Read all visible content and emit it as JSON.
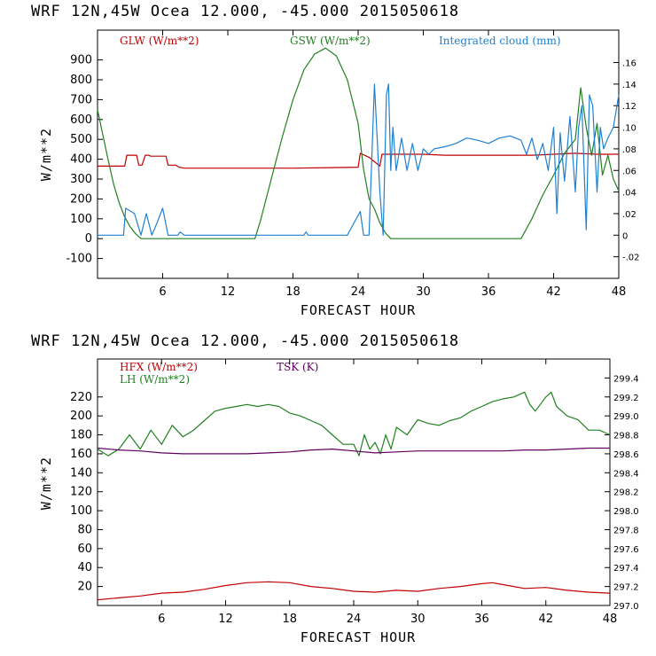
{
  "panels": [
    {
      "header": "WRF  12N,45W Ocea  12.000, -45.000  2015050618",
      "chart_data": {
        "type": "line",
        "xlabel": "FORECAST HOUR",
        "ylabel": "W/m**2",
        "xlim": [
          0,
          48
        ],
        "ylim": [
          -200,
          1050
        ],
        "xticks": [
          6,
          12,
          18,
          24,
          30,
          36,
          42,
          48
        ],
        "yticks": [
          -100,
          0,
          100,
          200,
          300,
          400,
          500,
          600,
          700,
          800,
          900
        ],
        "y2lim": [
          -0.04,
          0.19
        ],
        "y2ticks": [
          -0.02,
          0,
          0.02,
          0.04,
          0.06,
          0.08,
          0.1,
          0.12,
          0.14,
          0.16
        ],
        "y2ticklabels": [
          "-.02",
          "0",
          ".02",
          ".04",
          ".06",
          ".08",
          ".10",
          ".12",
          ".14",
          ".16"
        ],
        "series": [
          {
            "name": "GLW (W/m**2)",
            "color": "#c00000",
            "axis": "left",
            "x": [
              0,
              2.5,
              2.7,
              3.6,
              3.8,
              4.1,
              4.4,
              4.7,
              4.9,
              6.3,
              6.5,
              7.2,
              7.5,
              8,
              10,
              14,
              18,
              22,
              24,
              24.2,
              25,
              26,
              26.2,
              28,
              30,
              32,
              34,
              36,
              38,
              40,
              42,
              44,
              46,
              48
            ],
            "y": [
              365,
              365,
              420,
              420,
              370,
              370,
              420,
              420,
              415,
              415,
              370,
              370,
              360,
              355,
              355,
              355,
              355,
              358,
              360,
              430,
              410,
              365,
              425,
              425,
              425,
              420,
              420,
              420,
              420,
              420,
              425,
              430,
              425,
              425
            ]
          },
          {
            "name": "GSW (W/m**2)",
            "color": "#208020",
            "axis": "left",
            "x": [
              0,
              0.5,
              1,
              1.5,
              2,
              2.5,
              3,
              3.5,
              4,
              14.5,
              15,
              16,
              17,
              18,
              19,
              20,
              21,
              22,
              23,
              24,
              24.5,
              25,
              25.5,
              26,
              26.5,
              27,
              39,
              40,
              41,
              42,
              43,
              44,
              44.5,
              45,
              45.5,
              46,
              46.5,
              47,
              47.5,
              48
            ],
            "y": [
              650,
              520,
              390,
              270,
              180,
              110,
              60,
              25,
              0,
              0,
              90,
              300,
              510,
              700,
              850,
              930,
              960,
              920,
              800,
              580,
              350,
              200,
              150,
              80,
              30,
              0,
              0,
              100,
              220,
              320,
              430,
              500,
              760,
              560,
              420,
              580,
              320,
              420,
              300,
              240
            ]
          },
          {
            "name": "Integrated cloud (mm)",
            "color": "#2080d0",
            "axis": "right",
            "x": [
              0,
              2.4,
              2.6,
              3.4,
              4,
              4.5,
              5,
              5.5,
              6,
              6.5,
              7,
              7.4,
              7.6,
              8,
              15,
              19,
              19.2,
              19.4,
              23,
              24.2,
              24.5,
              24.8,
              25,
              25.5,
              26,
              26.3,
              26.6,
              26.8,
              27,
              27.2,
              27.5,
              28,
              28.5,
              29,
              29.5,
              30,
              30.5,
              31,
              32,
              33,
              34,
              35,
              36,
              37,
              38,
              39,
              39.5,
              40,
              40.5,
              41,
              41.5,
              42,
              42.3,
              42.6,
              43,
              43.5,
              44,
              44.3,
              44.6,
              45,
              45.3,
              45.6,
              46,
              46.3,
              46.6,
              47,
              47.5,
              48
            ],
            "y": [
              0,
              0,
              0.025,
              0.02,
              0,
              0.02,
              0,
              0.012,
              0.025,
              0,
              0,
              0,
              0.003,
              0,
              0,
              0,
              0.003,
              0,
              0,
              0.022,
              0,
              0,
              0,
              0.14,
              0.04,
              0,
              0.13,
              0.14,
              0.06,
              0.1,
              0.06,
              0.09,
              0.06,
              0.085,
              0.06,
              0.08,
              0.075,
              0.08,
              0.082,
              0.085,
              0.09,
              0.088,
              0.085,
              0.09,
              0.092,
              0.088,
              0.075,
              0.09,
              0.07,
              0.085,
              0.06,
              0.1,
              0.02,
              0.095,
              0.05,
              0.11,
              0.04,
              0.1,
              0.12,
              0.005,
              0.13,
              0.12,
              0.04,
              0.1,
              0.08,
              0.09,
              0.1,
              0.13
            ]
          }
        ],
        "legend": [
          "GLW (W/m**2)",
          "GSW (W/m**2)",
          "Integrated cloud (mm)"
        ]
      }
    },
    {
      "header": "WRF  12N,45W Ocea  12.000, -45.000  2015050618",
      "chart_data": {
        "type": "line",
        "xlabel": "FORECAST HOUR",
        "ylabel": "W/m**2",
        "xlim": [
          0,
          48
        ],
        "ylim": [
          0,
          260
        ],
        "xticks": [
          6,
          12,
          18,
          24,
          30,
          36,
          42,
          48
        ],
        "yticks": [
          20,
          40,
          60,
          80,
          100,
          120,
          140,
          160,
          180,
          200,
          220
        ],
        "y2lim": [
          297.0,
          299.6
        ],
        "y2ticks": [
          297.0,
          297.2,
          297.4,
          297.6,
          297.8,
          298.0,
          298.2,
          298.4,
          298.6,
          298.8,
          299.0,
          299.2,
          299.4
        ],
        "y2ticklabels": [
          "297.0",
          "297.2",
          "297.4",
          "297.6",
          "297.8",
          "298.0",
          "298.2",
          "298.4",
          "298.6",
          "298.8",
          "299.0",
          "299.2",
          "299.4"
        ],
        "series": [
          {
            "name": "HFX (W/m**2)",
            "color": "#c00000",
            "axis": "left",
            "x": [
              0,
              2,
              4,
              6,
              8,
              10,
              12,
              14,
              16,
              18,
              20,
              22,
              24,
              26,
              28,
              30,
              32,
              34,
              36,
              37,
              38,
              40,
              42,
              44,
              46,
              48
            ],
            "y": [
              6,
              8,
              10,
              13,
              14,
              17,
              21,
              24,
              25,
              24,
              20,
              18,
              15,
              14,
              16,
              15,
              18,
              20,
              23,
              24,
              22,
              18,
              19,
              16,
              14,
              13
            ]
          },
          {
            "name": "LH (W/m**2)",
            "color": "#208020",
            "axis": "left",
            "x": [
              0,
              1,
              2,
              3,
              4,
              5,
              6,
              7,
              8,
              9,
              10,
              11,
              12,
              13,
              14,
              15,
              16,
              17,
              18,
              19,
              20,
              21,
              22,
              23,
              24,
              24.5,
              25,
              25.5,
              26,
              26.5,
              27,
              27.5,
              28,
              29,
              30,
              31,
              32,
              33,
              34,
              35,
              36,
              37,
              38,
              39,
              40,
              40.5,
              41,
              42,
              42.5,
              43,
              44,
              45,
              46,
              47,
              48
            ],
            "y": [
              165,
              158,
              165,
              180,
              165,
              185,
              170,
              190,
              178,
              185,
              195,
              205,
              208,
              210,
              212,
              210,
              212,
              210,
              203,
              200,
              195,
              190,
              180,
              170,
              170,
              158,
              180,
              165,
              172,
              160,
              180,
              165,
              188,
              180,
              196,
              192,
              190,
              195,
              198,
              205,
              210,
              215,
              218,
              220,
              225,
              212,
              205,
              220,
              225,
              210,
              200,
              196,
              185,
              185,
              180
            ]
          },
          {
            "name": "TSK (K)",
            "color": "#600060",
            "axis": "right",
            "x": [
              0,
              2,
              4,
              6,
              8,
              10,
              12,
              14,
              16,
              18,
              20,
              22,
              24,
              26,
              28,
              30,
              32,
              34,
              36,
              38,
              40,
              42,
              44,
              46,
              48
            ],
            "y": [
              298.66,
              298.64,
              298.63,
              298.61,
              298.6,
              298.6,
              298.6,
              298.6,
              298.61,
              298.62,
              298.64,
              298.65,
              298.63,
              298.61,
              298.62,
              298.63,
              298.63,
              298.63,
              298.63,
              298.63,
              298.64,
              298.64,
              298.65,
              298.66,
              298.66
            ]
          }
        ],
        "legend": [
          "HFX (W/m**2)",
          "LH (W/m**2)",
          "TSK (K)"
        ]
      }
    }
  ]
}
